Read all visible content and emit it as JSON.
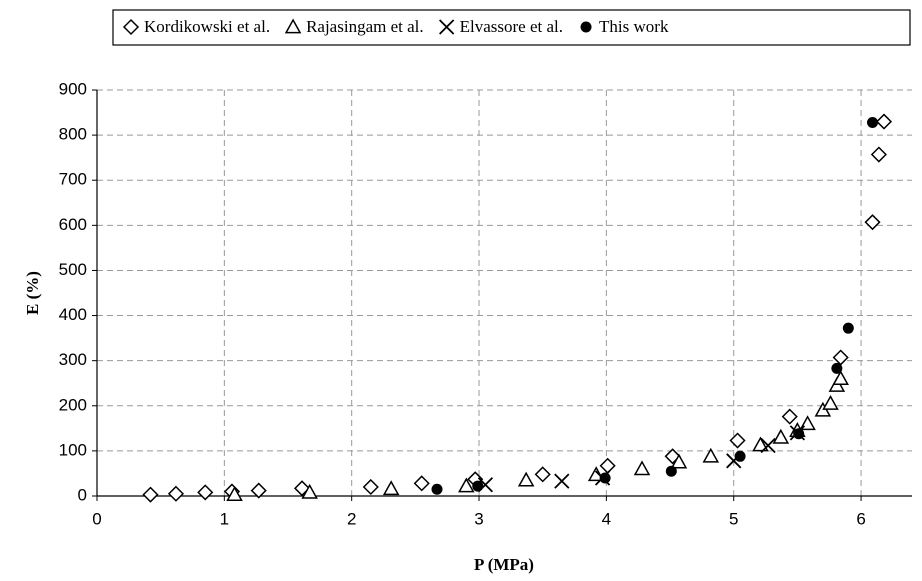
{
  "chart_data": {
    "type": "scatter",
    "xlabel": "P (MPa)",
    "ylabel": "E (%)",
    "xlim": [
      0,
      6.4
    ],
    "ylim": [
      0,
      900
    ],
    "xticks": [
      0,
      1,
      2,
      3,
      4,
      5,
      6
    ],
    "yticks": [
      0,
      100,
      200,
      300,
      400,
      500,
      600,
      700,
      800,
      900
    ],
    "grid": true,
    "legend": "top",
    "series": [
      {
        "name": "Kordikowski et al.",
        "marker": "diamond",
        "color": "#000000",
        "x": [
          0.42,
          0.62,
          0.85,
          1.06,
          1.27,
          1.61,
          2.15,
          2.55,
          2.97,
          3.5,
          4.01,
          4.52,
          5.03,
          5.44,
          5.84,
          6.09,
          6.14,
          6.18
        ],
        "values": [
          3,
          5,
          8,
          10,
          12,
          17,
          20,
          28,
          37,
          48,
          67,
          88,
          123,
          176,
          307,
          607,
          757,
          830
        ]
      },
      {
        "name": "Rajasingam et al.",
        "marker": "triangle",
        "color": "#000000",
        "x": [
          1.08,
          1.67,
          2.31,
          2.9,
          3.37,
          3.92,
          4.28,
          4.57,
          4.82,
          5.21,
          5.37,
          5.5,
          5.58,
          5.7,
          5.76,
          5.81,
          5.84
        ],
        "values": [
          3,
          8,
          16,
          22,
          35,
          47,
          60,
          75,
          88,
          113,
          130,
          145,
          160,
          190,
          205,
          245,
          260
        ]
      },
      {
        "name": "Elvassore et al.",
        "marker": "cross",
        "color": "#000000",
        "x": [
          3.05,
          3.65,
          3.97,
          5.0,
          5.27,
          5.5
        ],
        "values": [
          25,
          33,
          40,
          78,
          112,
          140
        ]
      },
      {
        "name": "This work",
        "marker": "dot",
        "color": "#000000",
        "x": [
          2.67,
          2.99,
          3.99,
          4.51,
          5.05,
          5.51,
          5.81,
          5.9,
          6.09
        ],
        "values": [
          15,
          22,
          40,
          55,
          88,
          138,
          283,
          372,
          828
        ]
      }
    ]
  }
}
